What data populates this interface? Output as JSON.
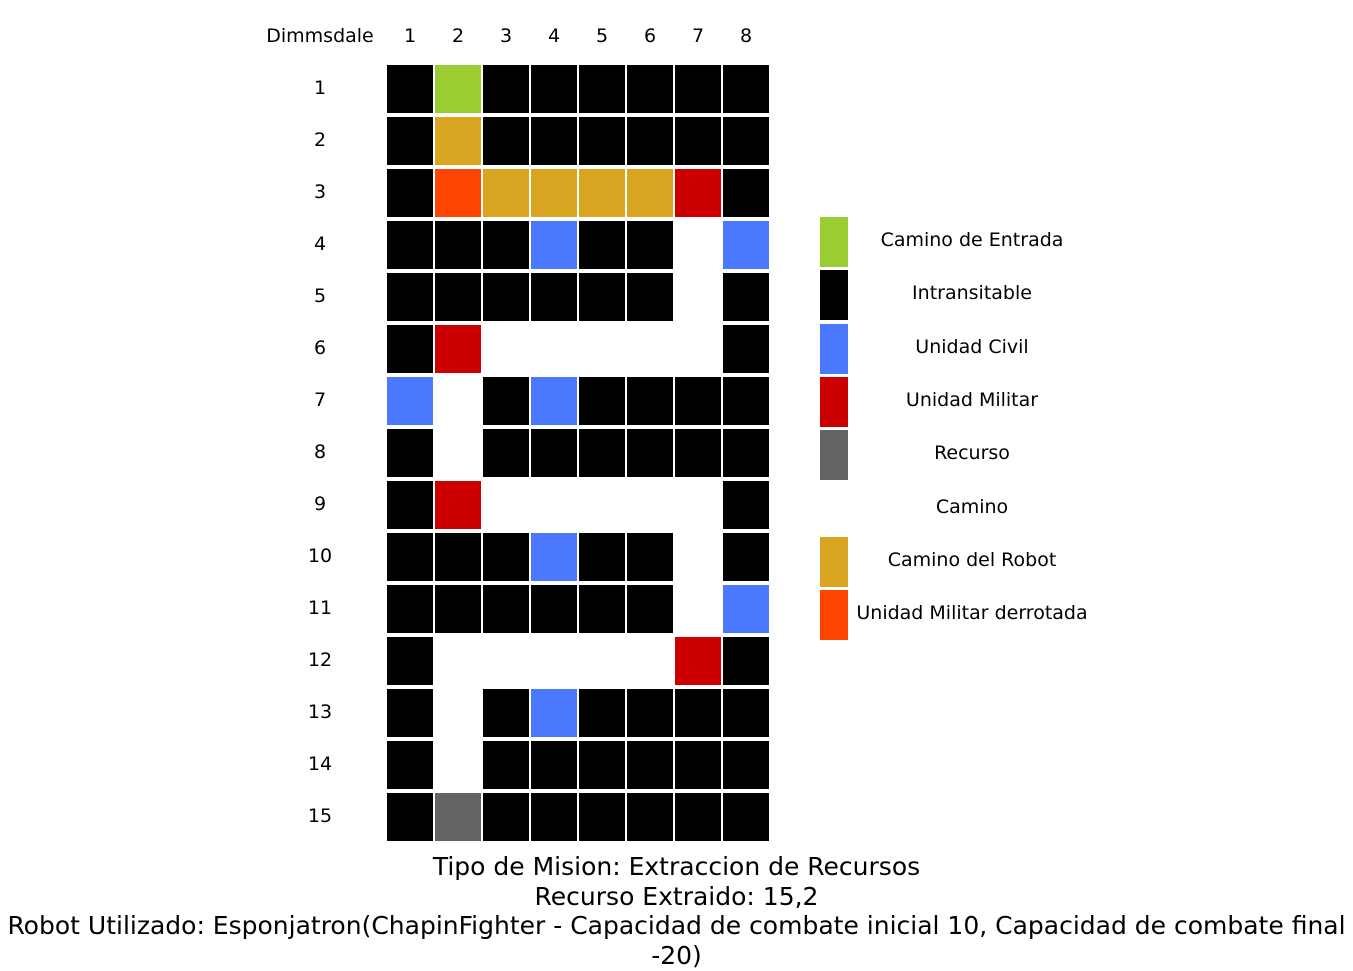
{
  "map_name": "Dimmsdale",
  "columns": [
    "1",
    "2",
    "3",
    "4",
    "5",
    "6",
    "7",
    "8"
  ],
  "rows": [
    "1",
    "2",
    "3",
    "4",
    "5",
    "6",
    "7",
    "8",
    "9",
    "10",
    "11",
    "12",
    "13",
    "14",
    "15"
  ],
  "colors": {
    "E": "#9acd32",
    "X": "#000000",
    "C": "#4a78ff",
    "M": "#cc0000",
    "R": "#646464",
    "P": "#ffffff",
    "B": "#daa520",
    "D": "#ff4500"
  },
  "grid": [
    [
      "X",
      "E",
      "X",
      "X",
      "X",
      "X",
      "X",
      "X"
    ],
    [
      "X",
      "B",
      "X",
      "X",
      "X",
      "X",
      "X",
      "X"
    ],
    [
      "X",
      "D",
      "B",
      "B",
      "B",
      "B",
      "M",
      "X"
    ],
    [
      "X",
      "X",
      "X",
      "C",
      "X",
      "X",
      "P",
      "C"
    ],
    [
      "X",
      "X",
      "X",
      "X",
      "X",
      "X",
      "P",
      "X"
    ],
    [
      "X",
      "M",
      "P",
      "P",
      "P",
      "P",
      "P",
      "X"
    ],
    [
      "C",
      "P",
      "X",
      "C",
      "X",
      "X",
      "X",
      "X"
    ],
    [
      "X",
      "P",
      "X",
      "X",
      "X",
      "X",
      "X",
      "X"
    ],
    [
      "X",
      "M",
      "P",
      "P",
      "P",
      "P",
      "P",
      "X"
    ],
    [
      "X",
      "X",
      "X",
      "C",
      "X",
      "X",
      "P",
      "X"
    ],
    [
      "X",
      "X",
      "X",
      "X",
      "X",
      "X",
      "P",
      "C"
    ],
    [
      "X",
      "P",
      "P",
      "P",
      "P",
      "P",
      "M",
      "X"
    ],
    [
      "X",
      "P",
      "X",
      "C",
      "X",
      "X",
      "X",
      "X"
    ],
    [
      "X",
      "P",
      "X",
      "X",
      "X",
      "X",
      "X",
      "X"
    ],
    [
      "X",
      "R",
      "X",
      "X",
      "X",
      "X",
      "X",
      "X"
    ]
  ],
  "legend": [
    {
      "key": "E",
      "label": "Camino de Entrada"
    },
    {
      "key": "X",
      "label": "Intransitable"
    },
    {
      "key": "C",
      "label": "Unidad Civil"
    },
    {
      "key": "M",
      "label": "Unidad Militar"
    },
    {
      "key": "R",
      "label": "Recurso"
    },
    {
      "key": "P",
      "label": "Camino"
    },
    {
      "key": "B",
      "label": "Camino del Robot"
    },
    {
      "key": "D",
      "label": "Unidad Militar derrotada"
    }
  ],
  "caption": {
    "mission": "Tipo de Mision: Extraccion de Recursos",
    "resource": "Recurso Extraido: 15,2",
    "robot": "Robot Utilizado: Esponjatron(ChapinFighter - Capacidad de combate inicial 10, Capacidad de combate final -20)"
  }
}
